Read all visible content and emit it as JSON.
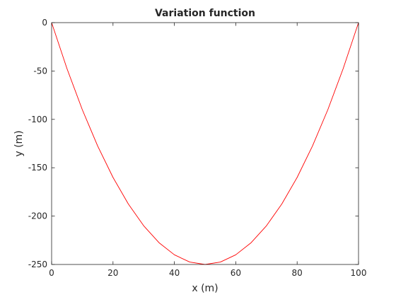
{
  "chart_data": {
    "type": "line",
    "title": "Variation function",
    "xlabel": "x (m)",
    "ylabel": "y (m)",
    "xlim": [
      0,
      100
    ],
    "ylim": [
      -250,
      0
    ],
    "xticks": [
      0,
      20,
      40,
      60,
      80,
      100
    ],
    "yticks": [
      0,
      -50,
      -100,
      -150,
      -200,
      -250
    ],
    "xtick_labels": [
      "0",
      "20",
      "40",
      "60",
      "80",
      "100"
    ],
    "ytick_labels": [
      "0",
      "-50",
      "-100",
      "-150",
      "-200",
      "-250"
    ],
    "grid": false,
    "series": [
      {
        "color": "#ff0000",
        "x": [
          0,
          5,
          10,
          15,
          20,
          25,
          30,
          35,
          40,
          45,
          50,
          55,
          60,
          65,
          70,
          75,
          80,
          85,
          90,
          95,
          100
        ],
        "y": [
          0,
          -47.5,
          -90,
          -127.5,
          -160,
          -187.5,
          -210,
          -227.5,
          -240,
          -247.5,
          -250,
          -247.5,
          -240,
          -227.5,
          -210,
          -187.5,
          -160,
          -127.5,
          -90,
          -47.5,
          0
        ]
      }
    ]
  }
}
